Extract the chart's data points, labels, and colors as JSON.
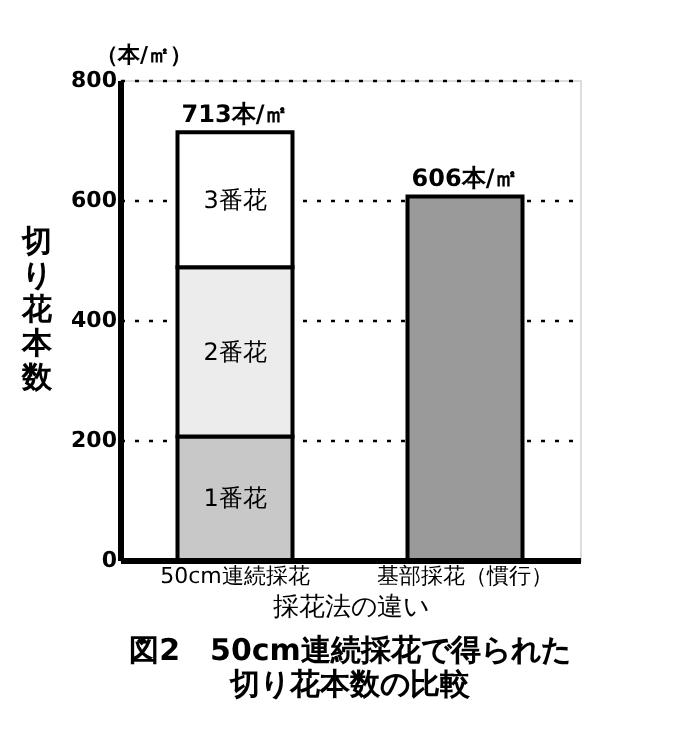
{
  "chart_data": {
    "type": "bar",
    "title": "図2　50cm連続採花で得られた切り花本数の比較",
    "xlabel": "採花法の違い",
    "ylabel": "切り花本数",
    "annotations": [
      "（本/㎡）"
    ],
    "categories": [
      "50cm連続採花",
      "基部採花（慣行）"
    ],
    "series": [
      {
        "name": "1番花",
        "color": "#c8c8c8",
        "values": [
          206,
          null
        ]
      },
      {
        "name": "2番花",
        "color": "#ececec",
        "values": [
          282,
          null
        ]
      },
      {
        "name": "3番花",
        "color": "#ffffff",
        "values": [
          225,
          null
        ]
      },
      {
        "color": "#9a9a9a",
        "values": [
          null,
          606
        ]
      }
    ],
    "stacked": true,
    "totals": [
      "713本/㎡",
      "606本/㎡"
    ],
    "ylim": [
      0,
      800
    ],
    "yticks": [
      0,
      200,
      400,
      600,
      800
    ],
    "grid": "y",
    "legend": false
  }
}
